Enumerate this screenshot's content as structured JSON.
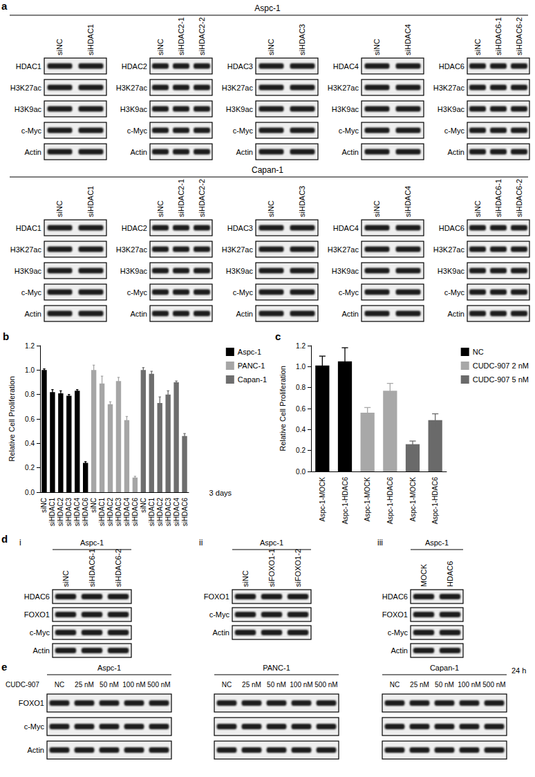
{
  "panel_labels": [
    "a",
    "b",
    "c",
    "d",
    "e"
  ],
  "panel_a": [
    {
      "cell_line": "Aspc-1",
      "groups": [
        {
          "lanes": [
            "siNC",
            "siHDAC1"
          ],
          "rows": [
            "HDAC1",
            "H3K27ac",
            "H3K9ac",
            "c-Myc",
            "Actin"
          ]
        },
        {
          "lanes": [
            "siNC",
            "siHDAC2-1",
            "siHDAC2-2"
          ],
          "rows": [
            "HDAC2",
            "H3K27ac",
            "H3K9ac",
            "c-Myc",
            "Actin"
          ]
        },
        {
          "lanes": [
            "siNC",
            "siHDAC3"
          ],
          "rows": [
            "HDAC3",
            "H3K27ac",
            "H3K9ac",
            "c-Myc",
            "Actin"
          ]
        },
        {
          "lanes": [
            "siNC",
            "siHDAC4"
          ],
          "rows": [
            "HDAC4",
            "H3K27ac",
            "H3K9ac",
            "c-Myc",
            "Actin"
          ]
        },
        {
          "lanes": [
            "siNC",
            "siHDAC6-1",
            "siHDAC6-2"
          ],
          "rows": [
            "HDAC6",
            "H3K27ac",
            "H3K9ac",
            "c-Myc",
            "Actin"
          ]
        }
      ]
    },
    {
      "cell_line": "Capan-1",
      "groups": [
        {
          "lanes": [
            "siNC",
            "siHDAC1"
          ],
          "rows": [
            "HDAC1",
            "H3K27ac",
            "H3K9ac",
            "c-Myc",
            "Actin"
          ]
        },
        {
          "lanes": [
            "siNC",
            "siHDAC2-1",
            "siHDAC2-2"
          ],
          "rows": [
            "HDAC2",
            "H3K27ac",
            "H3K9ac",
            "c-Myc",
            "Actin"
          ]
        },
        {
          "lanes": [
            "siNC",
            "siHDAC3"
          ],
          "rows": [
            "HDAC3",
            "H3K27ac",
            "H3K9ac",
            "c-Myc",
            "Actin"
          ]
        },
        {
          "lanes": [
            "siNC",
            "siHDAC4"
          ],
          "rows": [
            "HDAC4",
            "H3K27ac",
            "H3K9ac",
            "c-Myc",
            "Actin"
          ]
        },
        {
          "lanes": [
            "siNC",
            "siHDAC6-1",
            "siHDAC6-2"
          ],
          "rows": [
            "HDAC6",
            "H3K27ac",
            "H3K9ac",
            "c-Myc",
            "Actin"
          ]
        }
      ]
    }
  ],
  "chart_data": [
    {
      "type": "bar",
      "ylabel": "Relative Cell Proliferation",
      "annotation": "3 days",
      "categories": [
        "siNC",
        "siHDAC1",
        "siHDAC2",
        "siHDAC3",
        "siHDAC4",
        "siHDAC6",
        "siNC",
        "siHDAC1",
        "siHDAC2",
        "siHDAC3",
        "siHDAC4",
        "siHDAC6",
        "siNC",
        "siHDAC1",
        "siHDAC2",
        "siHDAC3",
        "siHDAC4",
        "siHDAC6"
      ],
      "series": [
        {
          "name": "Aspc-1",
          "color": "#000000",
          "values": [
            1.0,
            0.82,
            0.81,
            0.79,
            0.83,
            0.24,
            null,
            null,
            null,
            null,
            null,
            null,
            null,
            null,
            null,
            null,
            null,
            null
          ],
          "errors": [
            0.01,
            0.02,
            0.02,
            0.01,
            0.01,
            0.01,
            null,
            null,
            null,
            null,
            null,
            null,
            null,
            null,
            null,
            null,
            null,
            null
          ]
        },
        {
          "name": "PANC-1",
          "color": "#a6a6a6",
          "values": [
            null,
            null,
            null,
            null,
            null,
            null,
            1.0,
            0.89,
            0.72,
            0.91,
            0.59,
            0.12,
            null,
            null,
            null,
            null,
            null,
            null
          ],
          "errors": [
            null,
            null,
            null,
            null,
            null,
            null,
            0.04,
            0.06,
            0.02,
            0.03,
            0.03,
            0.01,
            null,
            null,
            null,
            null,
            null,
            null
          ]
        },
        {
          "name": "Capan-1",
          "color": "#6e6e6e",
          "values": [
            null,
            null,
            null,
            null,
            null,
            null,
            null,
            null,
            null,
            null,
            null,
            null,
            1.0,
            0.97,
            0.73,
            0.8,
            0.9,
            0.46
          ],
          "errors": [
            null,
            null,
            null,
            null,
            null,
            null,
            null,
            null,
            null,
            null,
            null,
            null,
            0.02,
            0.02,
            0.05,
            0.03,
            0.01,
            0.02
          ]
        }
      ],
      "ylim": [
        0,
        1.2
      ],
      "yticks": [
        {
          "value": 0,
          "label": "0.0"
        },
        0.2,
        0.4,
        0.6,
        0.8,
        {
          "value": 1,
          "label": "1.0"
        },
        1.2
      ],
      "grid": false,
      "legend": "right"
    },
    {
      "type": "bar",
      "ylabel": "Relative Cell Proliferation",
      "categories": [
        "Aspc-1-MOCK",
        "Aspc-1-HDAC6",
        "Aspc-1-MOCK",
        "Aspc-1-HDAC6",
        "Aspc-1-MOCK",
        "Aspc-1-HDAC6"
      ],
      "series": [
        {
          "name": "NC",
          "color": "#000000",
          "values": [
            1.01,
            1.05,
            null,
            null,
            null,
            null
          ],
          "errors": [
            0.09,
            0.13,
            null,
            null,
            null,
            null
          ]
        },
        {
          "name": "CUDC-907 2 nM",
          "color": "#a8a8a8",
          "values": [
            null,
            null,
            0.56,
            0.77,
            null,
            null
          ],
          "errors": [
            null,
            null,
            0.05,
            0.07,
            null,
            null
          ]
        },
        {
          "name": "CUDC-907 5 nM",
          "color": "#6a6a6a",
          "values": [
            null,
            null,
            null,
            null,
            0.26,
            0.49
          ],
          "errors": [
            null,
            null,
            null,
            null,
            0.03,
            0.06
          ]
        }
      ],
      "ylim": [
        0,
        1.2
      ],
      "yticks": [
        {
          "value": 0,
          "label": "0.0"
        },
        0.2,
        0.4,
        0.6,
        0.8,
        {
          "value": 1,
          "label": "1.0"
        },
        1.2
      ],
      "grid": false,
      "legend": "right"
    }
  ],
  "panel_d": [
    {
      "label": "i",
      "cell_line": "Aspc-1",
      "lanes": [
        "siNC",
        "siHDAC6-1",
        "siHDAC6-2"
      ],
      "rows": [
        "HDAC6",
        "FOXO1",
        "c-Myc",
        "Actin"
      ]
    },
    {
      "label": "ii",
      "cell_line": "Aspc-1",
      "lanes": [
        "siNC",
        "siFOXO1-1",
        "siFOXO1-2"
      ],
      "rows": [
        "FOXO1",
        "c-Myc",
        "Actin"
      ]
    },
    {
      "label": "iii",
      "cell_line": "Aspc-1",
      "lanes": [
        "MOCK",
        "HDAC6"
      ],
      "rows": [
        "HDAC6",
        "FOXO1",
        "c-Myc",
        "Actin"
      ]
    }
  ],
  "panel_e": {
    "treatment": "CUDC-907",
    "time": "24 h",
    "cell_lines": [
      "Aspc-1",
      "PANC-1",
      "Capan-1"
    ],
    "lanes": [
      "NC",
      "25 nM",
      "50 nM",
      "100 nM",
      "500 nM"
    ],
    "rows": [
      "FOXO1",
      "c-Myc",
      "Actin"
    ]
  }
}
